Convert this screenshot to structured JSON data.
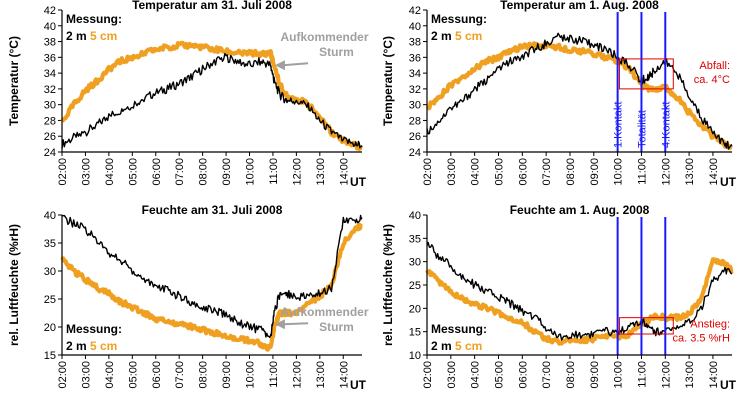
{
  "colors": {
    "series_2m": "#000000",
    "series_5cm": "#f0a020",
    "annotation_gray": "#a0a0a0",
    "contact_lines": "#1a1aff",
    "box_red": "#e00000"
  },
  "chart_data": [
    {
      "type": "line",
      "title": "Temperatur am 31. Juli 2008",
      "ylabel": "Temperatur (°C)",
      "xunit": "UT",
      "ylim": [
        24,
        42
      ],
      "yticks": [
        "24",
        "26",
        "28",
        "30",
        "32",
        "34",
        "36",
        "38",
        "40",
        "42"
      ],
      "xlim": [
        2.0,
        14.8
      ],
      "xticks": [
        "02:00",
        "03:00",
        "04:00",
        "05:00",
        "06:00",
        "07:00",
        "08:00",
        "09:00",
        "10:00",
        "11:00",
        "12:00",
        "13:00",
        "14:00"
      ],
      "legend": {
        "title": "Messung:",
        "label_2m": "2 m",
        "label_5cm": "5 cm",
        "placement": "top-left"
      },
      "annotation": {
        "line1": "Aufkommender",
        "line2": "Sturm",
        "arrow_target": [
          11.0,
          35.0
        ]
      },
      "series": [
        {
          "name": "2 m",
          "x": [
            2.0,
            2.5,
            3.0,
            3.5,
            4.0,
            4.5,
            5.0,
            5.5,
            6.0,
            6.5,
            7.0,
            7.5,
            8.0,
            8.5,
            9.0,
            9.5,
            10.0,
            10.5,
            10.9,
            11.05,
            11.3,
            11.6,
            12.0,
            12.5,
            13.0,
            13.5,
            14.0,
            14.5,
            14.8
          ],
          "values": [
            25.0,
            25.8,
            26.5,
            27.5,
            28.5,
            29.3,
            30.0,
            30.8,
            31.5,
            32.0,
            32.7,
            33.5,
            34.5,
            35.5,
            36.0,
            35.5,
            35.0,
            35.5,
            35.0,
            33.0,
            31.2,
            30.5,
            30.5,
            29.8,
            28.0,
            26.5,
            25.5,
            25.0,
            24.8
          ]
        },
        {
          "name": "5 cm",
          "x": [
            2.0,
            2.5,
            3.0,
            3.5,
            4.0,
            4.5,
            5.0,
            5.5,
            6.0,
            6.5,
            7.0,
            7.5,
            8.0,
            8.5,
            9.0,
            9.5,
            10.0,
            10.5,
            10.9,
            11.0,
            11.3,
            11.6,
            12.0,
            12.5,
            13.0,
            13.5,
            14.0,
            14.5,
            14.8
          ],
          "values": [
            27.8,
            30.0,
            31.8,
            33.0,
            34.5,
            35.5,
            36.0,
            36.5,
            37.0,
            37.3,
            37.5,
            37.5,
            37.3,
            37.0,
            36.8,
            36.5,
            36.5,
            36.5,
            36.5,
            35.5,
            32.5,
            31.0,
            30.8,
            30.0,
            28.5,
            26.5,
            25.5,
            24.8,
            24.5
          ]
        }
      ]
    },
    {
      "type": "line",
      "title": "Temperatur am 1. Aug. 2008",
      "ylabel": "Temperatur (°C)",
      "xunit": "UT",
      "ylim": [
        24,
        42
      ],
      "yticks": [
        "24",
        "26",
        "28",
        "30",
        "32",
        "34",
        "36",
        "38",
        "40",
        "42"
      ],
      "xlim": [
        2.0,
        14.8
      ],
      "xticks": [
        "02:00",
        "03:00",
        "04:00",
        "05:00",
        "06:00",
        "07:00",
        "08:00",
        "09:00",
        "10:00",
        "11:00",
        "12:00",
        "13:00",
        "14:00"
      ],
      "legend": {
        "title": "Messung:",
        "label_2m": "2 m",
        "label_5cm": "5 cm",
        "placement": "top-left"
      },
      "contacts": [
        {
          "x": 10.0,
          "label": "1.Kontakt"
        },
        {
          "x": 11.0,
          "label": "Totalität"
        },
        {
          "x": 12.0,
          "label": "4.Kontakt"
        }
      ],
      "box": {
        "x": [
          11.0,
          12.0
        ],
        "y": [
          32.0,
          35.8
        ]
      },
      "box_annotation": {
        "line1": "Abfall:",
        "line2": "ca. 4°C"
      },
      "series": [
        {
          "name": "2 m",
          "x": [
            2.0,
            2.5,
            3.0,
            3.5,
            4.0,
            4.5,
            5.0,
            5.5,
            6.0,
            6.5,
            7.0,
            7.5,
            8.0,
            8.5,
            9.0,
            9.5,
            10.0,
            10.5,
            11.0,
            11.3,
            11.6,
            12.0,
            12.5,
            13.0,
            13.5,
            14.0,
            14.5,
            14.8
          ],
          "values": [
            26.5,
            28.0,
            29.5,
            30.5,
            32.0,
            33.0,
            34.5,
            35.5,
            36.0,
            37.0,
            37.8,
            38.5,
            38.5,
            38.0,
            37.5,
            37.0,
            36.0,
            35.0,
            33.0,
            33.5,
            34.5,
            35.5,
            34.0,
            31.0,
            28.5,
            26.5,
            25.0,
            24.8
          ]
        },
        {
          "name": "5 cm",
          "x": [
            2.0,
            2.5,
            3.0,
            3.5,
            4.0,
            4.5,
            5.0,
            5.5,
            6.0,
            6.5,
            7.0,
            7.5,
            8.0,
            8.5,
            9.0,
            9.5,
            10.0,
            10.5,
            11.0,
            11.3,
            11.6,
            12.0,
            12.5,
            13.0,
            13.5,
            14.0,
            14.5,
            14.8
          ],
          "values": [
            29.5,
            31.0,
            32.5,
            33.5,
            34.5,
            35.5,
            36.0,
            36.8,
            37.3,
            37.5,
            37.5,
            37.3,
            37.0,
            36.8,
            36.5,
            36.0,
            35.5,
            34.5,
            32.5,
            32.0,
            32.0,
            32.2,
            31.0,
            29.0,
            27.5,
            26.0,
            25.0,
            24.5
          ]
        }
      ]
    },
    {
      "type": "line",
      "title": "Feuchte am 31. Juli 2008",
      "ylabel": "rel. Luftfeuchte (%rH)",
      "xunit": "UT",
      "ylim": [
        15,
        40
      ],
      "yticks": [
        "15",
        "20",
        "25",
        "30",
        "35",
        "40"
      ],
      "xlim": [
        2.0,
        14.8
      ],
      "xticks": [
        "02:00",
        "03:00",
        "04:00",
        "05:00",
        "06:00",
        "07:00",
        "08:00",
        "09:00",
        "10:00",
        "11:00",
        "12:00",
        "13:00",
        "14:00"
      ],
      "legend": {
        "title": "Messung:",
        "label_2m": "2 m",
        "label_5cm": "5 cm",
        "placement": "bottom-left"
      },
      "annotation": {
        "line1": "Aufkommender",
        "line2": "Sturm",
        "arrow_target": [
          11.0,
          20.5
        ]
      },
      "series": [
        {
          "name": "2 m",
          "x": [
            2.0,
            2.5,
            3.0,
            3.5,
            4.0,
            4.5,
            5.0,
            5.5,
            6.0,
            6.5,
            7.0,
            7.5,
            8.0,
            8.5,
            9.0,
            9.5,
            10.0,
            10.5,
            10.9,
            11.05,
            11.3,
            11.6,
            12.0,
            12.5,
            13.0,
            13.5,
            14.0,
            14.5,
            14.8
          ],
          "values": [
            39.5,
            38.5,
            37.5,
            35.5,
            33.0,
            32.0,
            30.0,
            28.5,
            27.5,
            26.5,
            25.5,
            24.5,
            23.5,
            23.0,
            22.0,
            21.0,
            20.0,
            19.5,
            18.0,
            22.5,
            26.0,
            26.0,
            25.5,
            25.5,
            26.0,
            27.0,
            39.0,
            39.0,
            39.5
          ]
        },
        {
          "name": "5 cm",
          "x": [
            2.0,
            2.5,
            3.0,
            3.5,
            4.0,
            4.5,
            5.0,
            5.5,
            6.0,
            6.5,
            7.0,
            7.5,
            8.0,
            8.5,
            9.0,
            9.5,
            10.0,
            10.5,
            10.9,
            11.05,
            11.3,
            11.6,
            12.0,
            12.5,
            13.0,
            13.5,
            14.0,
            14.5,
            14.8
          ],
          "values": [
            32.0,
            30.0,
            28.5,
            27.0,
            26.0,
            24.5,
            23.5,
            22.5,
            21.5,
            21.0,
            20.5,
            20.0,
            19.5,
            19.0,
            18.5,
            18.0,
            17.5,
            17.0,
            16.0,
            20.0,
            22.5,
            22.5,
            22.5,
            24.0,
            25.5,
            27.5,
            35.0,
            37.5,
            38.0
          ]
        }
      ]
    },
    {
      "type": "line",
      "title": "Feuchte am 1. Aug. 2008",
      "ylabel": "rel. Luftfeuchte (%rH)",
      "xunit": "UT",
      "ylim": [
        10,
        40
      ],
      "yticks": [
        "10",
        "15",
        "20",
        "25",
        "30",
        "35",
        "40"
      ],
      "xlim": [
        2.0,
        14.8
      ],
      "xticks": [
        "02:00",
        "03:00",
        "04:00",
        "05:00",
        "06:00",
        "07:00",
        "08:00",
        "09:00",
        "10:00",
        "11:00",
        "12:00",
        "13:00",
        "14:00"
      ],
      "legend": {
        "title": "Messung:",
        "label_2m": "2 m",
        "label_5cm": "5 cm",
        "placement": "bottom-left"
      },
      "contacts": [
        {
          "x": 10.0
        },
        {
          "x": 11.0
        },
        {
          "x": 12.0
        }
      ],
      "box": {
        "x": [
          11.0,
          12.0
        ],
        "y": [
          14.5,
          18.0
        ]
      },
      "box_annotation": {
        "line1": "Anstieg:",
        "line2": "ca. 3.5 %rH"
      },
      "series": [
        {
          "name": "2 m",
          "x": [
            2.0,
            2.5,
            3.0,
            3.5,
            4.0,
            4.5,
            5.0,
            5.5,
            6.0,
            6.5,
            7.0,
            7.5,
            8.0,
            8.5,
            9.0,
            9.5,
            10.0,
            10.5,
            11.0,
            11.3,
            11.6,
            12.0,
            12.5,
            13.0,
            13.5,
            14.0,
            14.5,
            14.8
          ],
          "values": [
            34.0,
            31.0,
            29.0,
            26.5,
            25.0,
            23.5,
            22.5,
            21.0,
            19.5,
            18.0,
            16.0,
            14.0,
            14.0,
            14.5,
            14.5,
            15.0,
            15.0,
            16.0,
            17.0,
            16.5,
            15.0,
            15.0,
            15.5,
            17.0,
            20.0,
            26.0,
            28.0,
            27.5
          ]
        },
        {
          "name": "5 cm",
          "x": [
            2.0,
            2.5,
            3.0,
            3.5,
            4.0,
            4.5,
            5.0,
            5.5,
            6.0,
            6.5,
            7.0,
            7.5,
            8.0,
            8.5,
            9.0,
            9.5,
            10.0,
            10.5,
            11.0,
            11.3,
            11.6,
            12.0,
            12.5,
            13.0,
            13.5,
            14.0,
            14.5,
            14.8
          ],
          "values": [
            28.5,
            25.5,
            23.5,
            22.0,
            21.0,
            20.0,
            19.0,
            18.0,
            17.0,
            15.0,
            13.5,
            13.0,
            13.0,
            13.2,
            13.5,
            14.0,
            14.0,
            14.5,
            16.5,
            17.5,
            18.5,
            18.0,
            18.0,
            19.0,
            22.0,
            30.5,
            29.5,
            28.0
          ]
        }
      ]
    }
  ]
}
